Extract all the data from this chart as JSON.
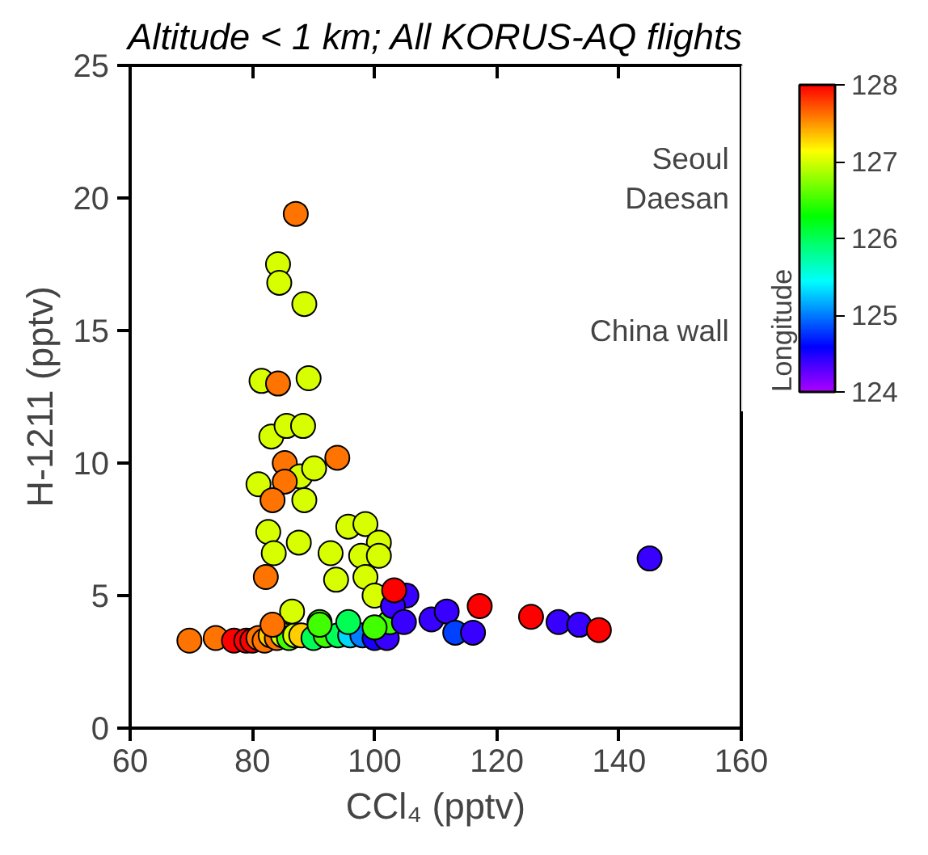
{
  "chart_data": {
    "type": "scatter",
    "title": "Altitude < 1 km; All KORUS-AQ flights",
    "xlabel": "CCl₄ (pptv)",
    "ylabel": "H-1211 (pptv)",
    "clabel": "Longitude",
    "annotations": [
      "Seoul",
      "Daesan",
      "China wall"
    ],
    "xlim": [
      60,
      160
    ],
    "xticks": [
      60,
      80,
      100,
      120,
      140,
      160
    ],
    "ylim": [
      0,
      25
    ],
    "yticks": [
      0,
      5,
      10,
      15,
      20,
      25
    ],
    "clim": [
      124,
      128
    ],
    "cticks": [
      124,
      125,
      126,
      127,
      128
    ],
    "grid": false,
    "marker": "circle",
    "x": [
      69.7,
      74,
      77,
      79,
      80,
      81,
      82,
      83,
      84,
      85,
      86,
      87,
      88,
      90,
      92,
      94,
      96,
      98,
      100,
      102,
      87.1,
      84.2,
      84.4,
      88.5,
      81.5,
      84.2,
      89.2,
      83.1,
      85.6,
      88.3,
      93.9,
      85.3,
      87.8,
      90.1,
      81.0,
      85.3,
      83.3,
      88.5,
      87.6,
      82.6,
      82.2,
      83.5,
      86.5,
      83.3,
      91.0,
      95.7,
      98.5,
      100.7,
      92.8,
      97.8,
      100.7,
      93.7,
      98.5,
      100,
      102.5,
      91,
      95.7,
      100,
      105.2,
      103,
      104.8,
      109.3,
      111.8,
      113.2,
      116.1,
      103.2,
      117.2,
      125.6,
      130.1,
      133.5,
      136.7,
      145
    ],
    "values": [
      3.3,
      3.4,
      3.3,
      3.3,
      3.3,
      3.4,
      3.3,
      3.5,
      3.4,
      3.5,
      3.4,
      3.5,
      3.5,
      3.4,
      3.5,
      3.5,
      3.5,
      3.5,
      3.4,
      3.4,
      19.4,
      17.5,
      16.8,
      16.0,
      13.1,
      13.0,
      13.2,
      11.0,
      11.4,
      11.4,
      10.2,
      10.0,
      9.5,
      9.8,
      9.2,
      9.3,
      8.6,
      8.6,
      7.0,
      7.4,
      5.7,
      6.6,
      4.4,
      3.9,
      4.0,
      7.6,
      7.7,
      7.0,
      6.6,
      6.5,
      6.5,
      5.6,
      5.7,
      5.0,
      4.0,
      3.9,
      4.0,
      3.8,
      5.0,
      4.6,
      4.0,
      4.1,
      4.4,
      3.6,
      3.6,
      5.2,
      4.6,
      4.2,
      4.0,
      3.9,
      3.7,
      6.4
    ],
    "cvalues": [
      127.6,
      127.6,
      128,
      128,
      128,
      127.6,
      127.6,
      127.3,
      127.6,
      127,
      126.5,
      127,
      127.3,
      126,
      126.5,
      126,
      125.3,
      125,
      124.5,
      124.4,
      127.6,
      127,
      127,
      127,
      127,
      127.6,
      127,
      127,
      127,
      127,
      127.6,
      127.6,
      127,
      127,
      127,
      127.6,
      127.6,
      127,
      127,
      127,
      127.6,
      127,
      127,
      127.6,
      126.5,
      127,
      127,
      127,
      127,
      127,
      127,
      127,
      127,
      127,
      126.5,
      126.5,
      126,
      126.5,
      124.4,
      124.4,
      124.4,
      124.4,
      124.4,
      124.8,
      124.4,
      128,
      128,
      128,
      124.4,
      124.4,
      128,
      124.4
    ]
  }
}
